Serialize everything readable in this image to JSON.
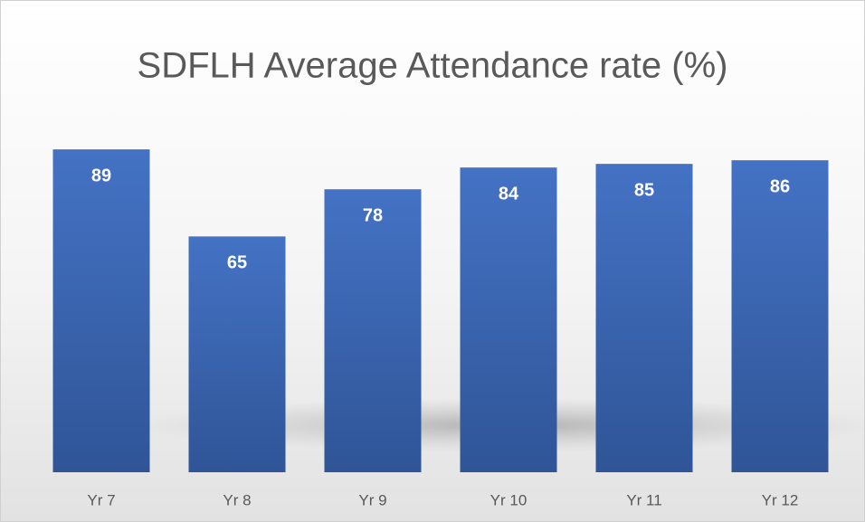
{
  "chart_data": {
    "type": "bar",
    "title": "SDFLH Average Attendance rate (%)",
    "categories": [
      "Yr 7",
      "Yr 8",
      "Yr 9",
      "Yr 10",
      "Yr 11",
      "Yr 12"
    ],
    "values": [
      89,
      65,
      78,
      84,
      85,
      86
    ],
    "color": "#4472c4",
    "ylim": [
      0,
      100
    ]
  }
}
